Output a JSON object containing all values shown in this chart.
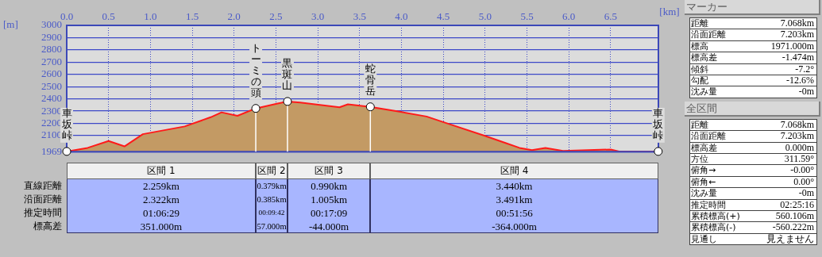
{
  "chart_data": [
    {
      "type": "area",
      "xlabel": "[km]",
      "ylabel": "[m]",
      "x": [
        0,
        0.25,
        0.5,
        0.69,
        0.91,
        1.41,
        1.72,
        1.85,
        2.04,
        2.259,
        2.51,
        2.638,
        2.79,
        3.26,
        3.36,
        3.628,
        3.99,
        4.3,
        4.52,
        4.99,
        5.25,
        5.41,
        5.56,
        5.72,
        5.93,
        6.5,
        6.6,
        7.068
      ],
      "values": [
        1971,
        2000,
        2056,
        2012,
        2112,
        2175,
        2250,
        2290,
        2262,
        2322,
        2360,
        2379,
        2370,
        2331,
        2356,
        2335,
        2294,
        2256,
        2206,
        2100,
        2038,
        2000,
        1981,
        2000,
        1975,
        1987,
        1971,
        1971
      ],
      "color": "#ff1a1a",
      "xlim": [
        0,
        7.07
      ],
      "xticks": [
        {
          "value": 0,
          "label": "0.0"
        },
        0.5,
        {
          "value": 1,
          "label": "1.0"
        },
        1.5,
        {
          "value": 2,
          "label": "2.0"
        },
        2.5,
        {
          "value": 3,
          "label": "3.0"
        },
        3.5,
        {
          "value": 4,
          "label": "4.0"
        },
        4.5,
        {
          "value": 5,
          "label": "5.0"
        },
        5.5,
        {
          "value": 6,
          "label": "6.0"
        },
        6.5
      ],
      "ylim": [
        1969,
        3000
      ],
      "yticks": [
        1969,
        2100,
        2200,
        2300,
        2400,
        2500,
        2600,
        2700,
        2800,
        2900,
        3000
      ],
      "grid": true,
      "legend": false,
      "marker": "none",
      "annotations": [
        {
          "text": "車坂峠",
          "x": 0,
          "y": 1971
        },
        {
          "text": "トーミの頭",
          "x": 2.259,
          "y": 2322
        },
        {
          "text": "黒斑山",
          "x": 2.638,
          "y": 2379
        },
        {
          "text": "蛇骨岳",
          "x": 3.628,
          "y": 2335
        },
        {
          "text": "車坂峠",
          "x": 7.068,
          "y": 1971
        }
      ]
    },
    {
      "type": "other",
      "categories": [
        "区間 1",
        "区間 2",
        "区間 3",
        "区間 4"
      ],
      "y_categories": [
        "直線距離",
        "沿面距離",
        "推定時間",
        "標高差"
      ],
      "cell_labels": [
        [
          "2.259km",
          "0.379km",
          "0.990km",
          "3.440km"
        ],
        [
          "2.322km",
          "0.385km",
          "1.005km",
          "3.491km"
        ],
        [
          "01:06:29",
          "00:09:42",
          "00:17:09",
          "00:51:56"
        ],
        [
          "351.000m",
          "57.000m",
          "-44.000m",
          "-364.000m"
        ]
      ]
    },
    {
      "type": "other",
      "title": "マーカー",
      "y_categories": [
        "距離",
        "沿面距離",
        "標高",
        "標高差",
        "傾斜",
        "勾配",
        "沈み量"
      ],
      "cell_labels": [
        [
          "7.068km"
        ],
        [
          "7.203km"
        ],
        [
          "1971.000m"
        ],
        [
          "-1.474m"
        ],
        [
          "-7.2°"
        ],
        [
          "-12.6%"
        ],
        [
          "-0m"
        ]
      ]
    },
    {
      "type": "other",
      "title": "全区間",
      "y_categories": [
        "距離",
        "沿面距離",
        "標高差",
        "方位",
        "俯角→",
        "俯角←",
        "沈み量",
        "推定時間",
        "累積標高(+)",
        "累積標高(-)",
        "見通し"
      ],
      "cell_labels": [
        [
          "7.068km"
        ],
        [
          "7.203km"
        ],
        [
          "0.000m"
        ],
        [
          "311.59°"
        ],
        [
          "-0.00°"
        ],
        [
          "0.00°"
        ],
        [
          "-0m"
        ],
        [
          "02:25:16"
        ],
        [
          "560.106m"
        ],
        [
          "-560.222m"
        ],
        [
          "見えません"
        ]
      ]
    }
  ]
}
